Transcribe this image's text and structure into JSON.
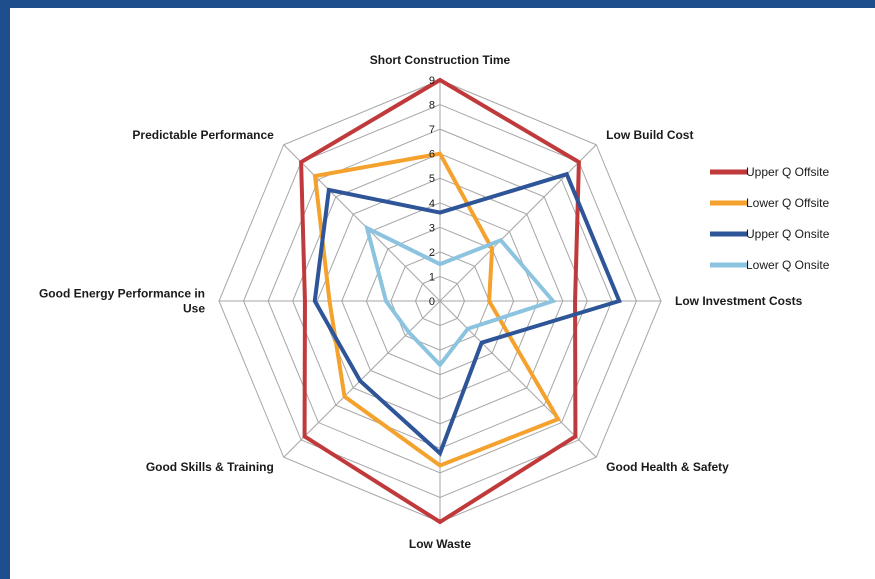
{
  "chart_data": {
    "type": "radar",
    "title": "",
    "axes": [
      "Short Construction Time",
      "Low Build Cost",
      "Low Investment Costs",
      "Good Health & Safety",
      "Low Waste",
      "Good Skills & Training",
      "Good Energy Performance in Use",
      "Predictable Performance"
    ],
    "axis_label_lines": [
      [
        "Short Construction Time"
      ],
      [
        "Low Build Cost"
      ],
      [
        "Low Investment Costs"
      ],
      [
        "Good Health & Safety"
      ],
      [
        "Low Waste"
      ],
      [
        "Good Skills & Training"
      ],
      [
        "Good Energy Performance in",
        "Use"
      ],
      [
        "Predictable Performance"
      ]
    ],
    "rmin": 0,
    "rmax": 9,
    "ticks": [
      "0",
      "1",
      "2",
      "3",
      "4",
      "5",
      "6",
      "7",
      "8",
      "9"
    ],
    "grid": true,
    "legend_position": "right",
    "series": [
      {
        "name": "Upper Q Offsite",
        "color": "#c0393b",
        "values": [
          9,
          8,
          5.5,
          7.8,
          9,
          7.8,
          5.5,
          8
        ]
      },
      {
        "name": "Lower Q Offsite",
        "color": "#f4a22d",
        "values": [
          6,
          3,
          2,
          6.8,
          6.7,
          5.5,
          4.5,
          7.2
        ]
      },
      {
        "name": "Upper Q Onsite",
        "color": "#2e5597",
        "values": [
          3.6,
          7.3,
          7.3,
          2.4,
          6.2,
          4.6,
          5.1,
          6.4
        ]
      },
      {
        "name": "Lower Q Onsite",
        "color": "#8cc4e0",
        "values": [
          1.5,
          3.5,
          4.6,
          1.6,
          2.6,
          1.8,
          2.2,
          4.2
        ]
      }
    ]
  }
}
